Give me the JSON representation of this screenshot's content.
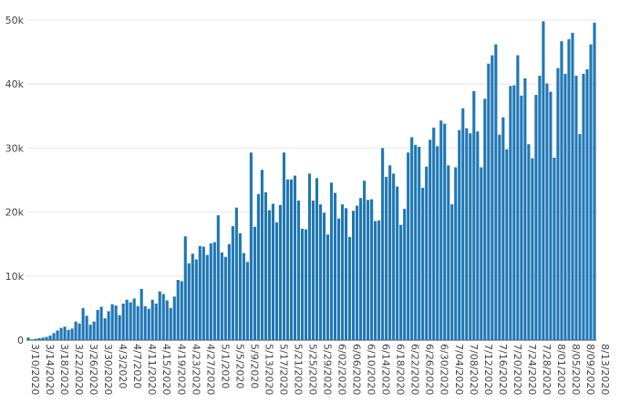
{
  "chart_data": {
    "type": "bar",
    "title": "",
    "xlabel": "",
    "ylabel": "",
    "ylim": [
      0,
      50000
    ],
    "y_ticks": [
      "0",
      "10k",
      "20k",
      "30k",
      "40k",
      "50k"
    ],
    "y_tick_values": [
      0,
      10000,
      20000,
      30000,
      40000,
      50000
    ],
    "x_start_date": "2020-03-10",
    "x_tick_labels": [
      "3/10/2020",
      "3/14/2020",
      "3/18/2020",
      "3/22/2020",
      "3/26/2020",
      "3/30/2020",
      "4/3/2020",
      "4/7/2020",
      "4/11/2020",
      "4/15/2020",
      "4/19/2020",
      "4/23/2020",
      "4/27/2020",
      "5/1/2020",
      "5/5/2020",
      "5/9/2020",
      "5/13/2020",
      "5/17/2020",
      "5/21/2020",
      "5/25/2020",
      "5/29/2020",
      "6/02/2020",
      "6/06/2020",
      "6/10/2020",
      "6/14/2020",
      "6/18/2020",
      "6/22/2020",
      "6/26/2020",
      "6/30/2020",
      "7/04/2020",
      "7/08/2020",
      "7/12/2020",
      "7/16/2020",
      "7/20/2020",
      "7/24/2020",
      "7/28/2020",
      "8/01/2020",
      "8/05/2020",
      "8/09/2020",
      "8/13/2020"
    ],
    "grid": true,
    "legend": "none",
    "color": "#1f77b4",
    "values": [
      400,
      100,
      200,
      300,
      400,
      500,
      700,
      1100,
      1500,
      1900,
      2100,
      1600,
      1800,
      2900,
      2600,
      5000,
      3800,
      2400,
      2900,
      4700,
      5200,
      3400,
      4500,
      5600,
      5400,
      3900,
      5700,
      6300,
      5900,
      6500,
      5300,
      8000,
      5300,
      4900,
      6300,
      5700,
      7600,
      7200,
      6200,
      5000,
      6800,
      9400,
      9200,
      16200,
      12000,
      13500,
      12600,
      14700,
      14600,
      13300,
      15100,
      15300,
      19500,
      13700,
      13000,
      15000,
      17800,
      20700,
      16700,
      13600,
      12200,
      29300,
      17700,
      22800,
      26600,
      23100,
      20300,
      21300,
      18400,
      21100,
      29300,
      25100,
      25100,
      25700,
      21800,
      17400,
      17300,
      26000,
      21800,
      25300,
      21200,
      19900,
      16500,
      24600,
      23000,
      19000,
      21200,
      20600,
      16100,
      20200,
      21000,
      22200,
      24900,
      21900,
      22000,
      18600,
      18700,
      30000,
      25500,
      27300,
      26000,
      24000,
      18000,
      20500,
      29300,
      31700,
      30500,
      30200,
      23800,
      27100,
      31300,
      33200,
      30300,
      34300,
      33800,
      27300,
      21200,
      27000,
      32800,
      36200,
      33100,
      32300,
      38900,
      32600,
      27000,
      37700,
      43200,
      44500,
      46200,
      32100,
      34800,
      29800,
      39700,
      39800,
      44500,
      38200,
      40900,
      30600,
      28400,
      38300,
      41300,
      49800,
      40100,
      38800,
      28500,
      42500,
      46700,
      41600,
      47000,
      48000,
      41300,
      32200,
      41600,
      42300,
      46200,
      49600
    ]
  }
}
